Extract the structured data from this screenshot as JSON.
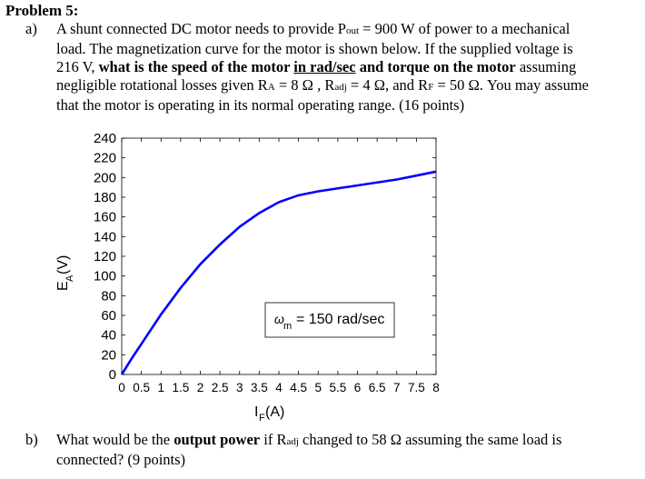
{
  "problem": {
    "title": "Problem 5:"
  },
  "part_a": {
    "label": "a)",
    "l1": "A shunt connected DC motor needs to provide P",
    "l1_sub": "out",
    "l1_end": " = 900 W of power to a mechanical",
    "l2": "load.  The magnetization curve for the motor is shown below.  If the supplied voltage is",
    "l3_a": "216 V, ",
    "l3_b": "what is the speed of the motor ",
    "l3_c": "in rad/sec",
    "l3_d": " and torque on the motor",
    "l3_e": " assuming",
    "l4_a": "negligible rotational losses given R",
    "l4_sub1": "A",
    "l4_b": " = 8 Ω , R",
    "l4_sub2": "adj",
    "l4_c": " = 4 Ω, and R",
    "l4_sub3": "F",
    "l4_d": " = 50 Ω. You may assume",
    "l5": "that the motor is operating in its normal operating range.  (16 points)"
  },
  "part_b": {
    "label": "b)",
    "l1_a": "What would be the ",
    "l1_b": "output power",
    "l1_c": " if R",
    "l1_sub": "adj",
    "l1_d": " changed to 58 Ω assuming the same load is",
    "l2": "connected? (9 points)"
  },
  "chart_data": {
    "type": "line",
    "title": "",
    "xlabel_main": "I",
    "xlabel_sub": "F",
    "xlabel_unit": " (A)",
    "ylabel_main": "E",
    "ylabel_sub": "A",
    "ylabel_unit": " (V)",
    "xlim": [
      0,
      8
    ],
    "ylim": [
      0,
      240
    ],
    "x_ticks": [
      0,
      0.5,
      1,
      1.5,
      2,
      2.5,
      3,
      3.5,
      4,
      4.5,
      5,
      5.5,
      6,
      6.5,
      7,
      7.5,
      8
    ],
    "x_tick_labels": [
      "0",
      "0.5",
      "1",
      "1.5",
      "2",
      "2.5",
      "3",
      "3.5",
      "4",
      "4.5",
      "5",
      "5.5",
      "6",
      "6.5",
      "7",
      "7.5",
      "8"
    ],
    "y_ticks": [
      0,
      20,
      40,
      60,
      80,
      100,
      120,
      140,
      160,
      180,
      200,
      220,
      240
    ],
    "y_tick_labels": [
      "0",
      "20",
      "40",
      "60",
      "80",
      "100",
      "120",
      "140",
      "160",
      "180",
      "200",
      "220",
      "240"
    ],
    "grid": false,
    "line_color": "#0000ff",
    "series": [
      {
        "x": [
          0,
          0.25,
          0.5,
          0.75,
          1,
          1.5,
          2,
          2.5,
          3,
          3.5,
          4,
          4.5,
          5,
          5.5,
          6,
          6.5,
          7,
          7.5,
          8
        ],
        "y": [
          0,
          16,
          31,
          46,
          61,
          88,
          112,
          132,
          150,
          164,
          175,
          182,
          186,
          189,
          192,
          195,
          198,
          202,
          206
        ]
      }
    ],
    "annotation": {
      "symbol": "ω",
      "sub": "m",
      "text": " = 150 rad/sec"
    }
  }
}
